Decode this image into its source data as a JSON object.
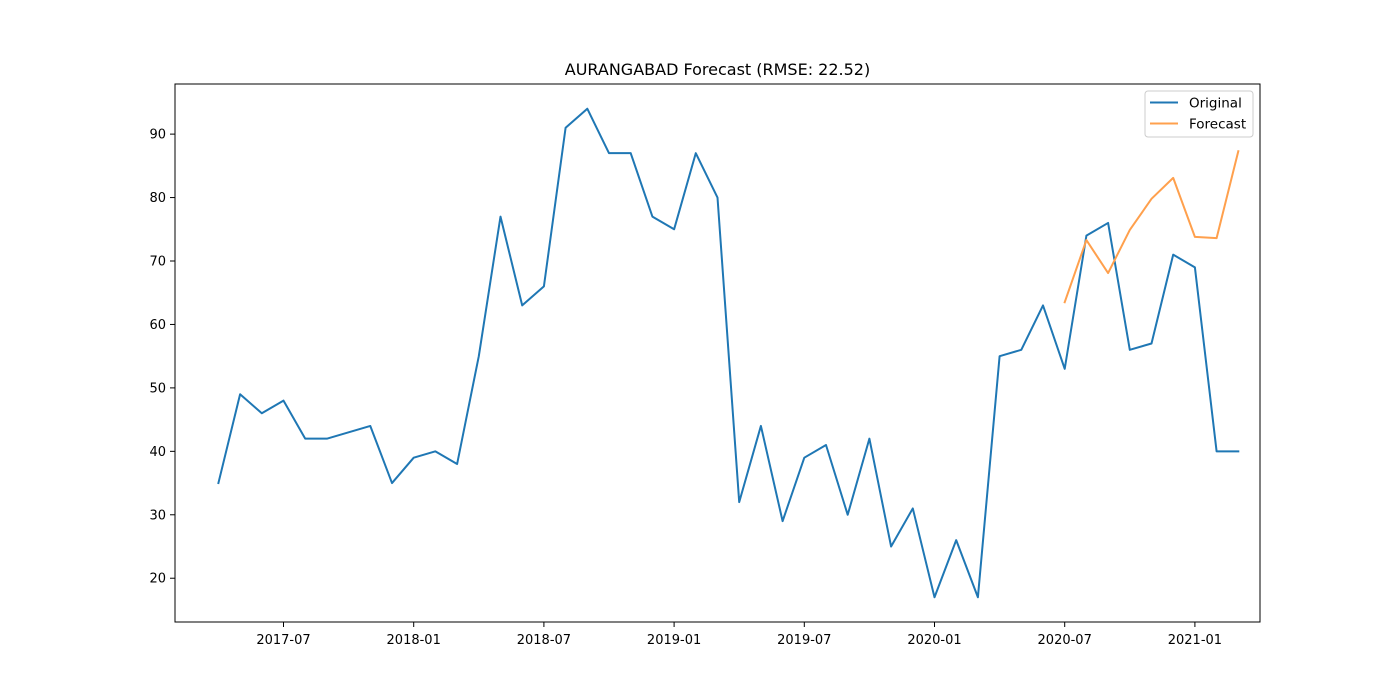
{
  "chart_data": {
    "type": "line",
    "title": "AURANGABAD Forecast (RMSE: 22.52)",
    "xlabel": "",
    "ylabel": "",
    "x_ticks": [
      "2017-07",
      "2018-01",
      "2018-07",
      "2019-01",
      "2019-07",
      "2020-01",
      "2020-07",
      "2021-01"
    ],
    "y_ticks": [
      20,
      30,
      40,
      50,
      60,
      70,
      80,
      90
    ],
    "xlim": [
      "2017-02-01",
      "2021-04-01"
    ],
    "ylim": [
      13.1,
      97.9
    ],
    "grid": false,
    "legend_position": "top-right",
    "series": [
      {
        "name": "Original",
        "color": "#1f77b4",
        "x": [
          "2017-04",
          "2017-05",
          "2017-06",
          "2017-07",
          "2017-08",
          "2017-09",
          "2017-10",
          "2017-11",
          "2017-12",
          "2018-01",
          "2018-02",
          "2018-03",
          "2018-04",
          "2018-05",
          "2018-06",
          "2018-07",
          "2018-08",
          "2018-09",
          "2018-10",
          "2018-11",
          "2018-12",
          "2019-01",
          "2019-02",
          "2019-03",
          "2019-04",
          "2019-05",
          "2019-06",
          "2019-07",
          "2019-08",
          "2019-09",
          "2019-10",
          "2019-11",
          "2019-12",
          "2020-01",
          "2020-02",
          "2020-03",
          "2020-04",
          "2020-05",
          "2020-06",
          "2020-07",
          "2020-08",
          "2020-09",
          "2020-10",
          "2020-11",
          "2020-12",
          "2021-01",
          "2021-02",
          "2021-03"
        ],
        "values": [
          35,
          49,
          46,
          48,
          42,
          42,
          43,
          44,
          35,
          39,
          40,
          38,
          55,
          77,
          63,
          66,
          91,
          94,
          87,
          87,
          77,
          75,
          87,
          80,
          32,
          44,
          29,
          39,
          41,
          30,
          42,
          25,
          31,
          17,
          26,
          17,
          55,
          56,
          63,
          53,
          74,
          76,
          56,
          57,
          71,
          69,
          40,
          40
        ]
      },
      {
        "name": "Forecast",
        "color": "#ffa04d",
        "x": [
          "2020-07",
          "2020-08",
          "2020-09",
          "2020-10",
          "2020-11",
          "2020-12",
          "2021-01",
          "2021-02",
          "2021-03"
        ],
        "values": [
          63.5,
          73.3,
          68.1,
          74.9,
          79.8,
          83.1,
          73.8,
          73.6,
          87.3
        ]
      }
    ]
  }
}
